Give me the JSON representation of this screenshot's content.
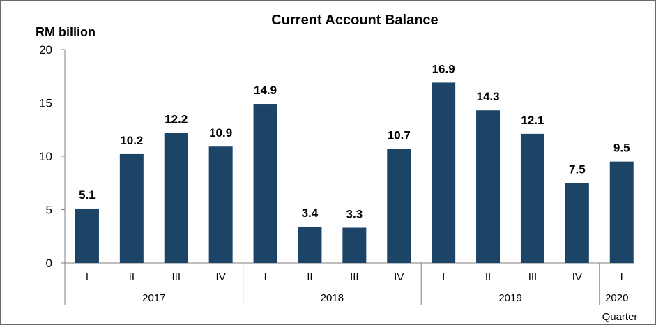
{
  "chart_data": {
    "type": "bar",
    "title": "Current Account Balance",
    "ylabel": "RM billion",
    "xlabel": "Quarter",
    "ylim": [
      0,
      20
    ],
    "yticks": [
      0,
      5,
      10,
      15,
      20
    ],
    "bar_color": "#1b4466",
    "categories": [
      "I",
      "II",
      "III",
      "IV",
      "I",
      "II",
      "III",
      "IV",
      "I",
      "II",
      "III",
      "IV",
      "I"
    ],
    "years": [
      {
        "label": "2017",
        "quarters": 4
      },
      {
        "label": "2018",
        "quarters": 4
      },
      {
        "label": "2019",
        "quarters": 4
      },
      {
        "label": "2020",
        "quarters": 1
      }
    ],
    "values": [
      5.1,
      10.2,
      12.2,
      10.9,
      14.9,
      3.4,
      3.3,
      10.7,
      16.9,
      14.3,
      12.1,
      7.5,
      9.5
    ],
    "data_labels": [
      "5.1",
      "10.2",
      "12.2",
      "10.9",
      "14.9",
      "3.4",
      "3.3",
      "10.7",
      "16.9",
      "14.3",
      "12.1",
      "7.5",
      "9.5"
    ],
    "grid": false,
    "legend": "none"
  }
}
